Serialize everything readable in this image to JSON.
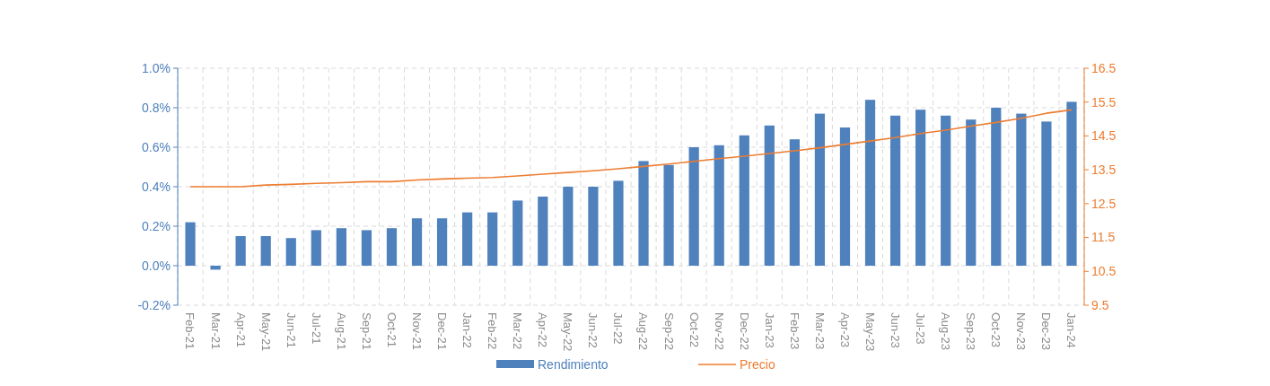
{
  "chart_data": {
    "type": "bar",
    "categories": [
      "Feb-21",
      "Mar-21",
      "Apr-21",
      "May-21",
      "Jun-21",
      "Jul-21",
      "Aug-21",
      "Sep-21",
      "Oct-21",
      "Nov-21",
      "Dec-21",
      "Jan-22",
      "Feb-22",
      "Mar-22",
      "Apr-22",
      "May-22",
      "Jun-22",
      "Jul-22",
      "Aug-22",
      "Sep-22",
      "Oct-22",
      "Nov-22",
      "Dec-22",
      "Jan-23",
      "Feb-23",
      "Mar-23",
      "Apr-23",
      "May-23",
      "Jun-23",
      "Jul-23",
      "Aug-23",
      "Sep-23",
      "Oct-23",
      "Nov-23",
      "Dec-23",
      "Jan-24"
    ],
    "series": [
      {
        "name": "Rendimiento",
        "color": "#4f81bd",
        "values": [
          0.22,
          -0.02,
          0.15,
          0.15,
          0.14,
          0.18,
          0.19,
          0.18,
          0.19,
          0.24,
          0.24,
          0.27,
          0.27,
          0.33,
          0.35,
          0.4,
          0.4,
          0.43,
          0.53,
          0.51,
          0.6,
          0.61,
          0.66,
          0.71,
          0.64,
          0.77,
          0.7,
          0.84,
          0.76,
          0.79,
          0.76,
          0.74,
          0.8,
          0.77,
          0.73,
          0.83
        ]
      },
      {
        "name": "Precio",
        "type": "line",
        "axis": "y2",
        "color": "#ed7d31",
        "values": [
          13.0,
          13.0,
          13.0,
          13.05,
          13.07,
          13.1,
          13.12,
          13.15,
          13.15,
          13.2,
          13.23,
          13.25,
          13.27,
          13.32,
          13.37,
          13.42,
          13.47,
          13.53,
          13.6,
          13.67,
          13.75,
          13.83,
          13.9,
          13.98,
          14.06,
          14.15,
          14.25,
          14.35,
          14.45,
          14.57,
          14.67,
          14.79,
          14.9,
          15.02,
          15.17,
          15.27
        ]
      }
    ],
    "ylim": [
      -0.2,
      1.0
    ],
    "yticks": [
      {
        "value": -0.2,
        "label": "-0.2%"
      },
      {
        "value": 0,
        "label": "0.0%"
      },
      {
        "value": 0.2,
        "label": "0.2%"
      },
      {
        "value": 0.4,
        "label": "0.4%"
      },
      {
        "value": 0.6,
        "label": "0.6%"
      },
      {
        "value": 0.8,
        "label": "0.8%"
      },
      {
        "value": 1.0,
        "label": "1.0%"
      }
    ],
    "y2lim": [
      9.5,
      16.5
    ],
    "y2ticks": [
      9.5,
      10.5,
      11.5,
      12.5,
      13.5,
      14.5,
      15.5,
      16.5
    ],
    "grid": true,
    "legend": "bottom"
  }
}
